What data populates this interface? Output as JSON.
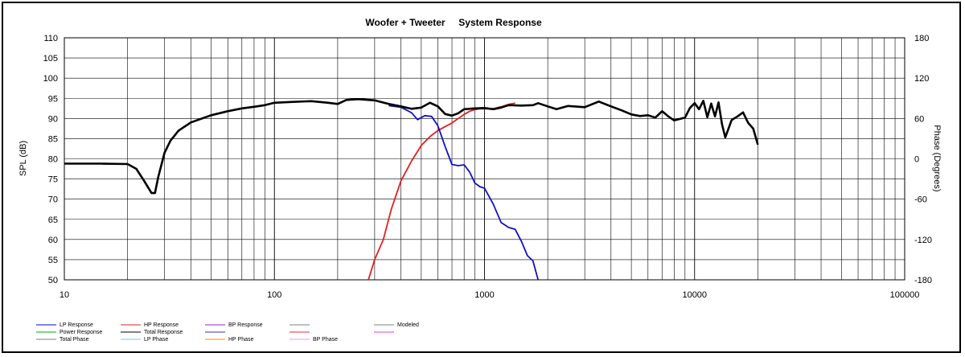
{
  "chart_data": {
    "type": "line",
    "title": "Woofer + Tweeter     System Response",
    "ylabel": "SPL (dB)",
    "y2label": "Phase (Degrees)",
    "xscale": "log",
    "xlim": [
      10,
      100000
    ],
    "ylim": [
      50,
      110
    ],
    "y2lim": [
      -180,
      180
    ],
    "grid": true,
    "x_ticks": [
      "10",
      "100",
      "1000",
      "10000",
      "100000"
    ],
    "y_ticks": [
      "50",
      "55",
      "60",
      "65",
      "70",
      "75",
      "80",
      "85",
      "90",
      "95",
      "100",
      "105",
      "110"
    ],
    "y2_ticks": [
      "-180",
      "-120",
      "-60",
      "0",
      "60",
      "120",
      "180"
    ],
    "legend_position": "bottom",
    "legend": [
      {
        "label": "LP Response",
        "color": "#0000cc"
      },
      {
        "label": "HP Response",
        "color": "#e02020"
      },
      {
        "label": "BP Response",
        "color": "#a020c0"
      },
      {
        "label": "",
        "color": "#808080"
      },
      {
        "label": "Modeled",
        "color": "#808080"
      },
      {
        "label": "Power Response",
        "color": "#00aa00"
      },
      {
        "label": "Total Response",
        "color": "#000000"
      },
      {
        "label": "",
        "color": "#3030c0"
      },
      {
        "label": "",
        "color": "#e03030"
      },
      {
        "label": "",
        "color": "#e040e0"
      },
      {
        "label": "Total Phase",
        "color": "#808080"
      },
      {
        "label": "LP Phase",
        "color": "#66ccff"
      },
      {
        "label": "HP Phase",
        "color": "#ff8800"
      },
      {
        "label": "BP Phase",
        "color": "#ff88ff"
      }
    ],
    "series": [
      {
        "name": "Total Response",
        "color": "#000000",
        "x": [
          10,
          15,
          20,
          22,
          24,
          26,
          27,
          28,
          30,
          32,
          35,
          40,
          50,
          60,
          70,
          80,
          90,
          100,
          120,
          150,
          180,
          200,
          220,
          250,
          300,
          350,
          400,
          450,
          500,
          550,
          600,
          650,
          700,
          750,
          800,
          900,
          1000,
          1100,
          1200,
          1300,
          1500,
          1700,
          1800,
          2000,
          2200,
          2500,
          3000,
          3500,
          4000,
          4500,
          5000,
          5500,
          6000,
          6500,
          7000,
          7500,
          8000,
          9000,
          9500,
          10000,
          10500,
          11000,
          11500,
          12000,
          12500,
          13000,
          13500,
          14000,
          15000,
          16000,
          17000,
          18000,
          19000,
          20000
        ],
        "values": [
          78.8,
          78.8,
          78.7,
          77.5,
          74.5,
          71.5,
          71.5,
          75.5,
          81.5,
          84.5,
          87,
          89,
          90.8,
          91.8,
          92.5,
          92.9,
          93.3,
          93.9,
          94.1,
          94.3,
          93.9,
          93.6,
          94.6,
          94.8,
          94.5,
          93.6,
          93.0,
          92.4,
          92.7,
          93.9,
          93.0,
          91.1,
          90.7,
          91.3,
          92.3,
          92.5,
          92.6,
          92.3,
          92.7,
          93.3,
          93.2,
          93.3,
          93.8,
          93.0,
          92.3,
          93.1,
          92.8,
          94.2,
          93.0,
          92.0,
          91.0,
          90.6,
          90.8,
          90.2,
          91.8,
          90.5,
          89.5,
          90.2,
          92.6,
          93.8,
          92.3,
          94.4,
          90.3,
          93.7,
          90.5,
          94.0,
          88.6,
          85.3,
          89.6,
          90.5,
          91.5,
          88.9,
          87.5,
          83.5
        ]
      },
      {
        "name": "LP Response",
        "color": "#1010c8",
        "x": [
          350,
          400,
          450,
          480,
          520,
          560,
          600,
          650,
          700,
          750,
          800,
          850,
          900,
          950,
          1000,
          1100,
          1200,
          1300,
          1400,
          1500,
          1600,
          1700,
          1750,
          1800
        ],
        "values": [
          93.2,
          92.8,
          91.4,
          89.7,
          90.7,
          90.5,
          88.2,
          83.0,
          78.6,
          78.3,
          78.5,
          76.7,
          74.0,
          73.1,
          72.7,
          68.8,
          64.2,
          63.0,
          62.5,
          59.5,
          56.0,
          54.7,
          52.3,
          50.0
        ]
      },
      {
        "name": "HP Response",
        "color": "#e02020",
        "x": [
          280,
          300,
          330,
          360,
          400,
          450,
          500,
          550,
          600,
          650,
          700,
          750,
          800,
          850,
          900,
          950,
          1000,
          1100,
          1200,
          1300,
          1400
        ],
        "values": [
          50.0,
          55.0,
          60.0,
          67.5,
          74.5,
          79.5,
          83.3,
          85.5,
          87.0,
          88.0,
          88.9,
          90.0,
          91.0,
          91.8,
          92.2,
          92.4,
          92.4,
          92.4,
          92.9,
          93.5,
          93.8
        ]
      }
    ]
  }
}
